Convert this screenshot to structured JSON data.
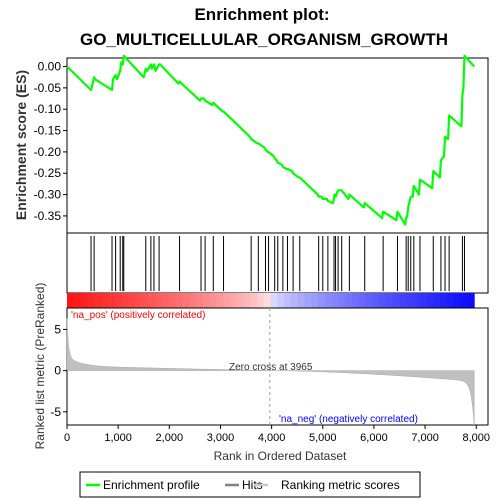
{
  "chart_data": {
    "type": "line",
    "title_line1": "Enrichment plot:",
    "title_line2": "GO_MULTICELLULAR_ORGANISM_GROWTH",
    "es_panel": {
      "ylabel": "Enrichment score (ES)",
      "ylim": [
        -0.39,
        0.02
      ],
      "yticks": [
        "0.00",
        "-0.05",
        "-0.10",
        "-0.15",
        "-0.20",
        "-0.25",
        "-0.30",
        "-0.35"
      ],
      "ytick_values": [
        0.0,
        -0.05,
        -0.1,
        -0.15,
        -0.2,
        -0.25,
        -0.3,
        -0.35
      ],
      "series": {
        "color": "#00ff00",
        "x": [
          0,
          470,
          480,
          530,
          550,
          880,
          900,
          950,
          980,
          1040,
          1060,
          1090,
          1110,
          1500,
          1540,
          1570,
          1640,
          1660,
          1700,
          1730,
          1800,
          1820,
          2180,
          2200,
          2600,
          2620,
          2680,
          2700,
          2840,
          2860,
          3040,
          3060,
          3580,
          3600,
          3720,
          3740,
          3860,
          3880,
          3920,
          3940,
          4040,
          4060,
          4100,
          4120,
          4200,
          4220,
          4290,
          4310,
          4400,
          4420,
          4530,
          4550,
          4900,
          4920,
          4980,
          5000,
          5080,
          5100,
          5200,
          5220,
          5230,
          5250,
          5280,
          5300,
          5350,
          5370,
          5500,
          5520,
          5800,
          5820,
          6160,
          6180,
          6440,
          6460,
          6610,
          6630,
          6650,
          6670,
          6700,
          6720,
          6760,
          6780,
          6880,
          6900,
          7140,
          7160,
          7290,
          7310,
          7370,
          7390,
          7450,
          7470,
          7710,
          7730,
          7750,
          7770,
          7960
        ],
        "y": [
          0.0,
          -0.055,
          -0.05,
          -0.025,
          -0.03,
          -0.055,
          -0.03,
          -0.02,
          -0.03,
          -0.01,
          0.01,
          0.005,
          0.025,
          -0.025,
          -0.005,
          -0.01,
          0.005,
          -0.005,
          0.005,
          -0.01,
          0.005,
          0.005,
          -0.04,
          -0.035,
          -0.08,
          -0.075,
          -0.075,
          -0.08,
          -0.09,
          -0.085,
          -0.105,
          -0.105,
          -0.165,
          -0.17,
          -0.18,
          -0.18,
          -0.19,
          -0.195,
          -0.2,
          -0.2,
          -0.21,
          -0.215,
          -0.22,
          -0.225,
          -0.23,
          -0.235,
          -0.24,
          -0.24,
          -0.245,
          -0.25,
          -0.26,
          -0.26,
          -0.3,
          -0.305,
          -0.305,
          -0.31,
          -0.31,
          -0.315,
          -0.32,
          -0.31,
          -0.3,
          -0.305,
          -0.295,
          -0.29,
          -0.29,
          -0.29,
          -0.31,
          -0.3,
          -0.33,
          -0.32,
          -0.355,
          -0.34,
          -0.36,
          -0.34,
          -0.37,
          -0.355,
          -0.35,
          -0.33,
          -0.315,
          -0.305,
          -0.305,
          -0.28,
          -0.3,
          -0.265,
          -0.285,
          -0.245,
          -0.26,
          -0.22,
          -0.21,
          -0.165,
          -0.17,
          -0.115,
          -0.14,
          -0.065,
          -0.05,
          0.025,
          0.0
        ]
      }
    },
    "hits": [
      470,
      530,
      880,
      950,
      1040,
      1090,
      1110,
      1540,
      1640,
      1700,
      1800,
      2200,
      2620,
      2700,
      2860,
      3060,
      3600,
      3740,
      3880,
      3940,
      4060,
      4120,
      4220,
      4310,
      4420,
      4550,
      4920,
      5000,
      5100,
      5220,
      5250,
      5300,
      5370,
      5520,
      5820,
      6180,
      6460,
      6630,
      6670,
      6720,
      6780,
      6900,
      7160,
      7310,
      7390,
      7470,
      7730,
      7770
    ],
    "rank_panel": {
      "ylabel": "Ranked list metric (PreRanked)",
      "ylim": [
        -6.6,
        7.6
      ],
      "yticks": [
        "5",
        "0",
        "-5"
      ],
      "ytick_values": [
        5,
        0,
        -5
      ],
      "label_pos": "'na_pos' (positively correlated)",
      "label_neg": "'na_neg' (negatively correlated)",
      "zero_cross_label": "Zero cross at 3965",
      "zero_cross": 3965
    },
    "xaxis": {
      "label": "Rank in Ordered Dataset",
      "xlim": [
        0,
        8230
      ],
      "ticks": [
        "0",
        "1,000",
        "2,000",
        "3,000",
        "4,000",
        "5,000",
        "6,000",
        "7,000",
        "8,000"
      ],
      "tick_values": [
        0,
        1000,
        2000,
        3000,
        4000,
        5000,
        6000,
        7000,
        8000
      ],
      "n_genes": 7960
    },
    "legend": {
      "items": [
        {
          "label": "Enrichment profile",
          "color": "#00ff00"
        },
        {
          "label": "Hits",
          "color": "#808080"
        },
        {
          "label": "Ranking metric scores",
          "color": "#c8c8c8"
        }
      ],
      "placement": "bottom"
    },
    "colors": {
      "es_line": "#00ff00",
      "hit_line": "#000000",
      "pos_label": "#ff0000",
      "neg_label": "#0000ff",
      "metric_fill": "#c0c0c0",
      "zero_line": "#a0a0a0"
    }
  }
}
